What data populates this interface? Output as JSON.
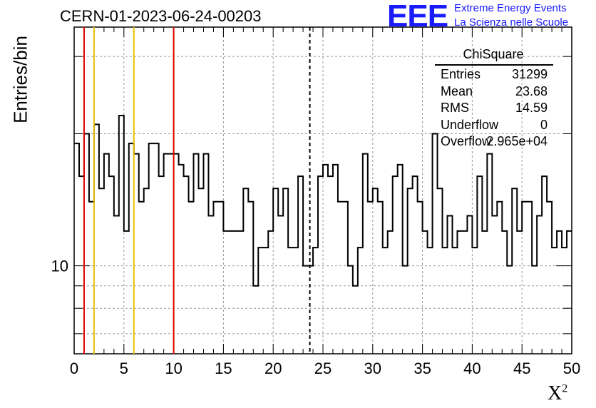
{
  "title": "CERN-01-2023-06-24-00203",
  "logo": {
    "mark": "EEE",
    "line1": "Extreme Energy Events",
    "line2": "La Scienza nelle Scuole"
  },
  "stats": {
    "name": "ChiSquare",
    "rows": [
      {
        "key": "Entries",
        "value": "31299"
      },
      {
        "key": "Mean",
        "value": "23.68"
      },
      {
        "key": "RMS",
        "value": "14.59"
      },
      {
        "key": "Underflow",
        "value": "0"
      },
      {
        "key": "Overflow",
        "value": "2.965e+04"
      }
    ]
  },
  "chart_data": {
    "type": "histogram",
    "title": "CERN-01-2023-06-24-00203",
    "xlabel": "X²",
    "ylabel": "Entries/bin",
    "xlim": [
      0,
      50
    ],
    "ylim": [
      6.3,
      35
    ],
    "yscale": "log",
    "grid": true,
    "bin_width": 0.5,
    "x_ticks": [
      0,
      5,
      10,
      15,
      20,
      25,
      30,
      35,
      40,
      45,
      50
    ],
    "y_ticks_labeled": [
      10
    ],
    "values": [
      19,
      16,
      20,
      14,
      21,
      15,
      18,
      16,
      13,
      22,
      12,
      19,
      18,
      14,
      15,
      19,
      19,
      16,
      18,
      18,
      18,
      17,
      16,
      14,
      18,
      15,
      18,
      13,
      14,
      14,
      12,
      12,
      12,
      12,
      15,
      14,
      9,
      11,
      11,
      12,
      15,
      13,
      15,
      11,
      11,
      16,
      10,
      10,
      11,
      16,
      17,
      16,
      17,
      14,
      14,
      10,
      9,
      11,
      18,
      14,
      15,
      14,
      11,
      12,
      16,
      17,
      10,
      15,
      16,
      14,
      12,
      11,
      20,
      15,
      11,
      13,
      11,
      12,
      12,
      13,
      11,
      16,
      12,
      18,
      13,
      14,
      12,
      10,
      15,
      12,
      14,
      14,
      10,
      13,
      16,
      14,
      11,
      12,
      11,
      12
    ],
    "vlines": [
      {
        "x": 1,
        "color": "#e00000",
        "style": "solid"
      },
      {
        "x": 2,
        "color": "#e8c000",
        "style": "solid"
      },
      {
        "x": 6,
        "color": "#e8c000",
        "style": "solid"
      },
      {
        "x": 10,
        "color": "#e00000",
        "style": "solid"
      },
      {
        "x": 23.68,
        "color": "#000000",
        "style": "dashed"
      }
    ],
    "line_color": "#000000"
  }
}
